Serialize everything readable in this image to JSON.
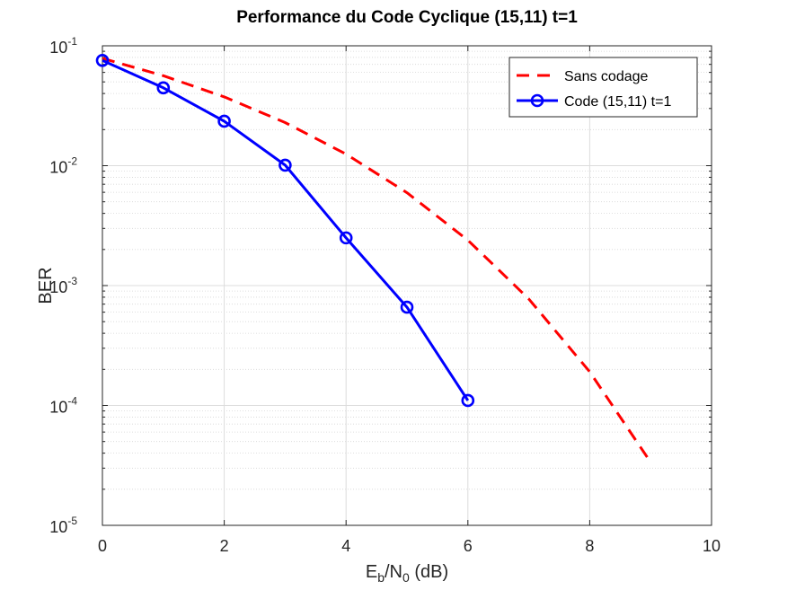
{
  "chart_data": {
    "type": "line",
    "title": "Performance du Code Cyclique (15,11) t=1",
    "xlabel": {
      "main1": "E",
      "sub1": "b",
      "main2": "/N",
      "sub2": "0",
      "main3": " (dB)"
    },
    "ylabel": "BER",
    "xlim": [
      0,
      10
    ],
    "ylim": [
      1e-05,
      0.1
    ],
    "yscale": "log",
    "grid": true,
    "minor_grid": true,
    "legend_position": "top-right",
    "x_ticks": [
      {
        "value": 0,
        "label": "0"
      },
      {
        "value": 2,
        "label": "2"
      },
      {
        "value": 4,
        "label": "4"
      },
      {
        "value": 6,
        "label": "6"
      },
      {
        "value": 8,
        "label": "8"
      },
      {
        "value": 10,
        "label": "10"
      }
    ],
    "y_ticks": [
      {
        "value": 0.1,
        "base": "10",
        "exp": "-1"
      },
      {
        "value": 0.01,
        "base": "10",
        "exp": "-2"
      },
      {
        "value": 0.001,
        "base": "10",
        "exp": "-3"
      },
      {
        "value": 0.0001,
        "base": "10",
        "exp": "-4"
      },
      {
        "value": 1e-05,
        "base": "10",
        "exp": "-5"
      }
    ],
    "series": [
      {
        "name": "Sans codage",
        "color": "#ff0000",
        "style": "dashed",
        "marker": "none",
        "x": [
          0,
          1,
          2,
          3,
          4,
          5,
          6,
          7,
          8,
          9
        ],
        "y": [
          0.0786,
          0.0563,
          0.0375,
          0.0229,
          0.0125,
          0.00595,
          0.00239,
          0.000773,
          0.000191,
          3.36e-05
        ]
      },
      {
        "name": "Code (15,11) t=1",
        "color": "#0000ff",
        "style": "solid",
        "marker": "circle",
        "x": [
          0,
          1,
          2,
          3,
          4,
          5,
          6
        ],
        "y": [
          0.0755,
          0.0446,
          0.0235,
          0.0101,
          0.0025,
          0.00066,
          0.00011
        ]
      }
    ]
  }
}
